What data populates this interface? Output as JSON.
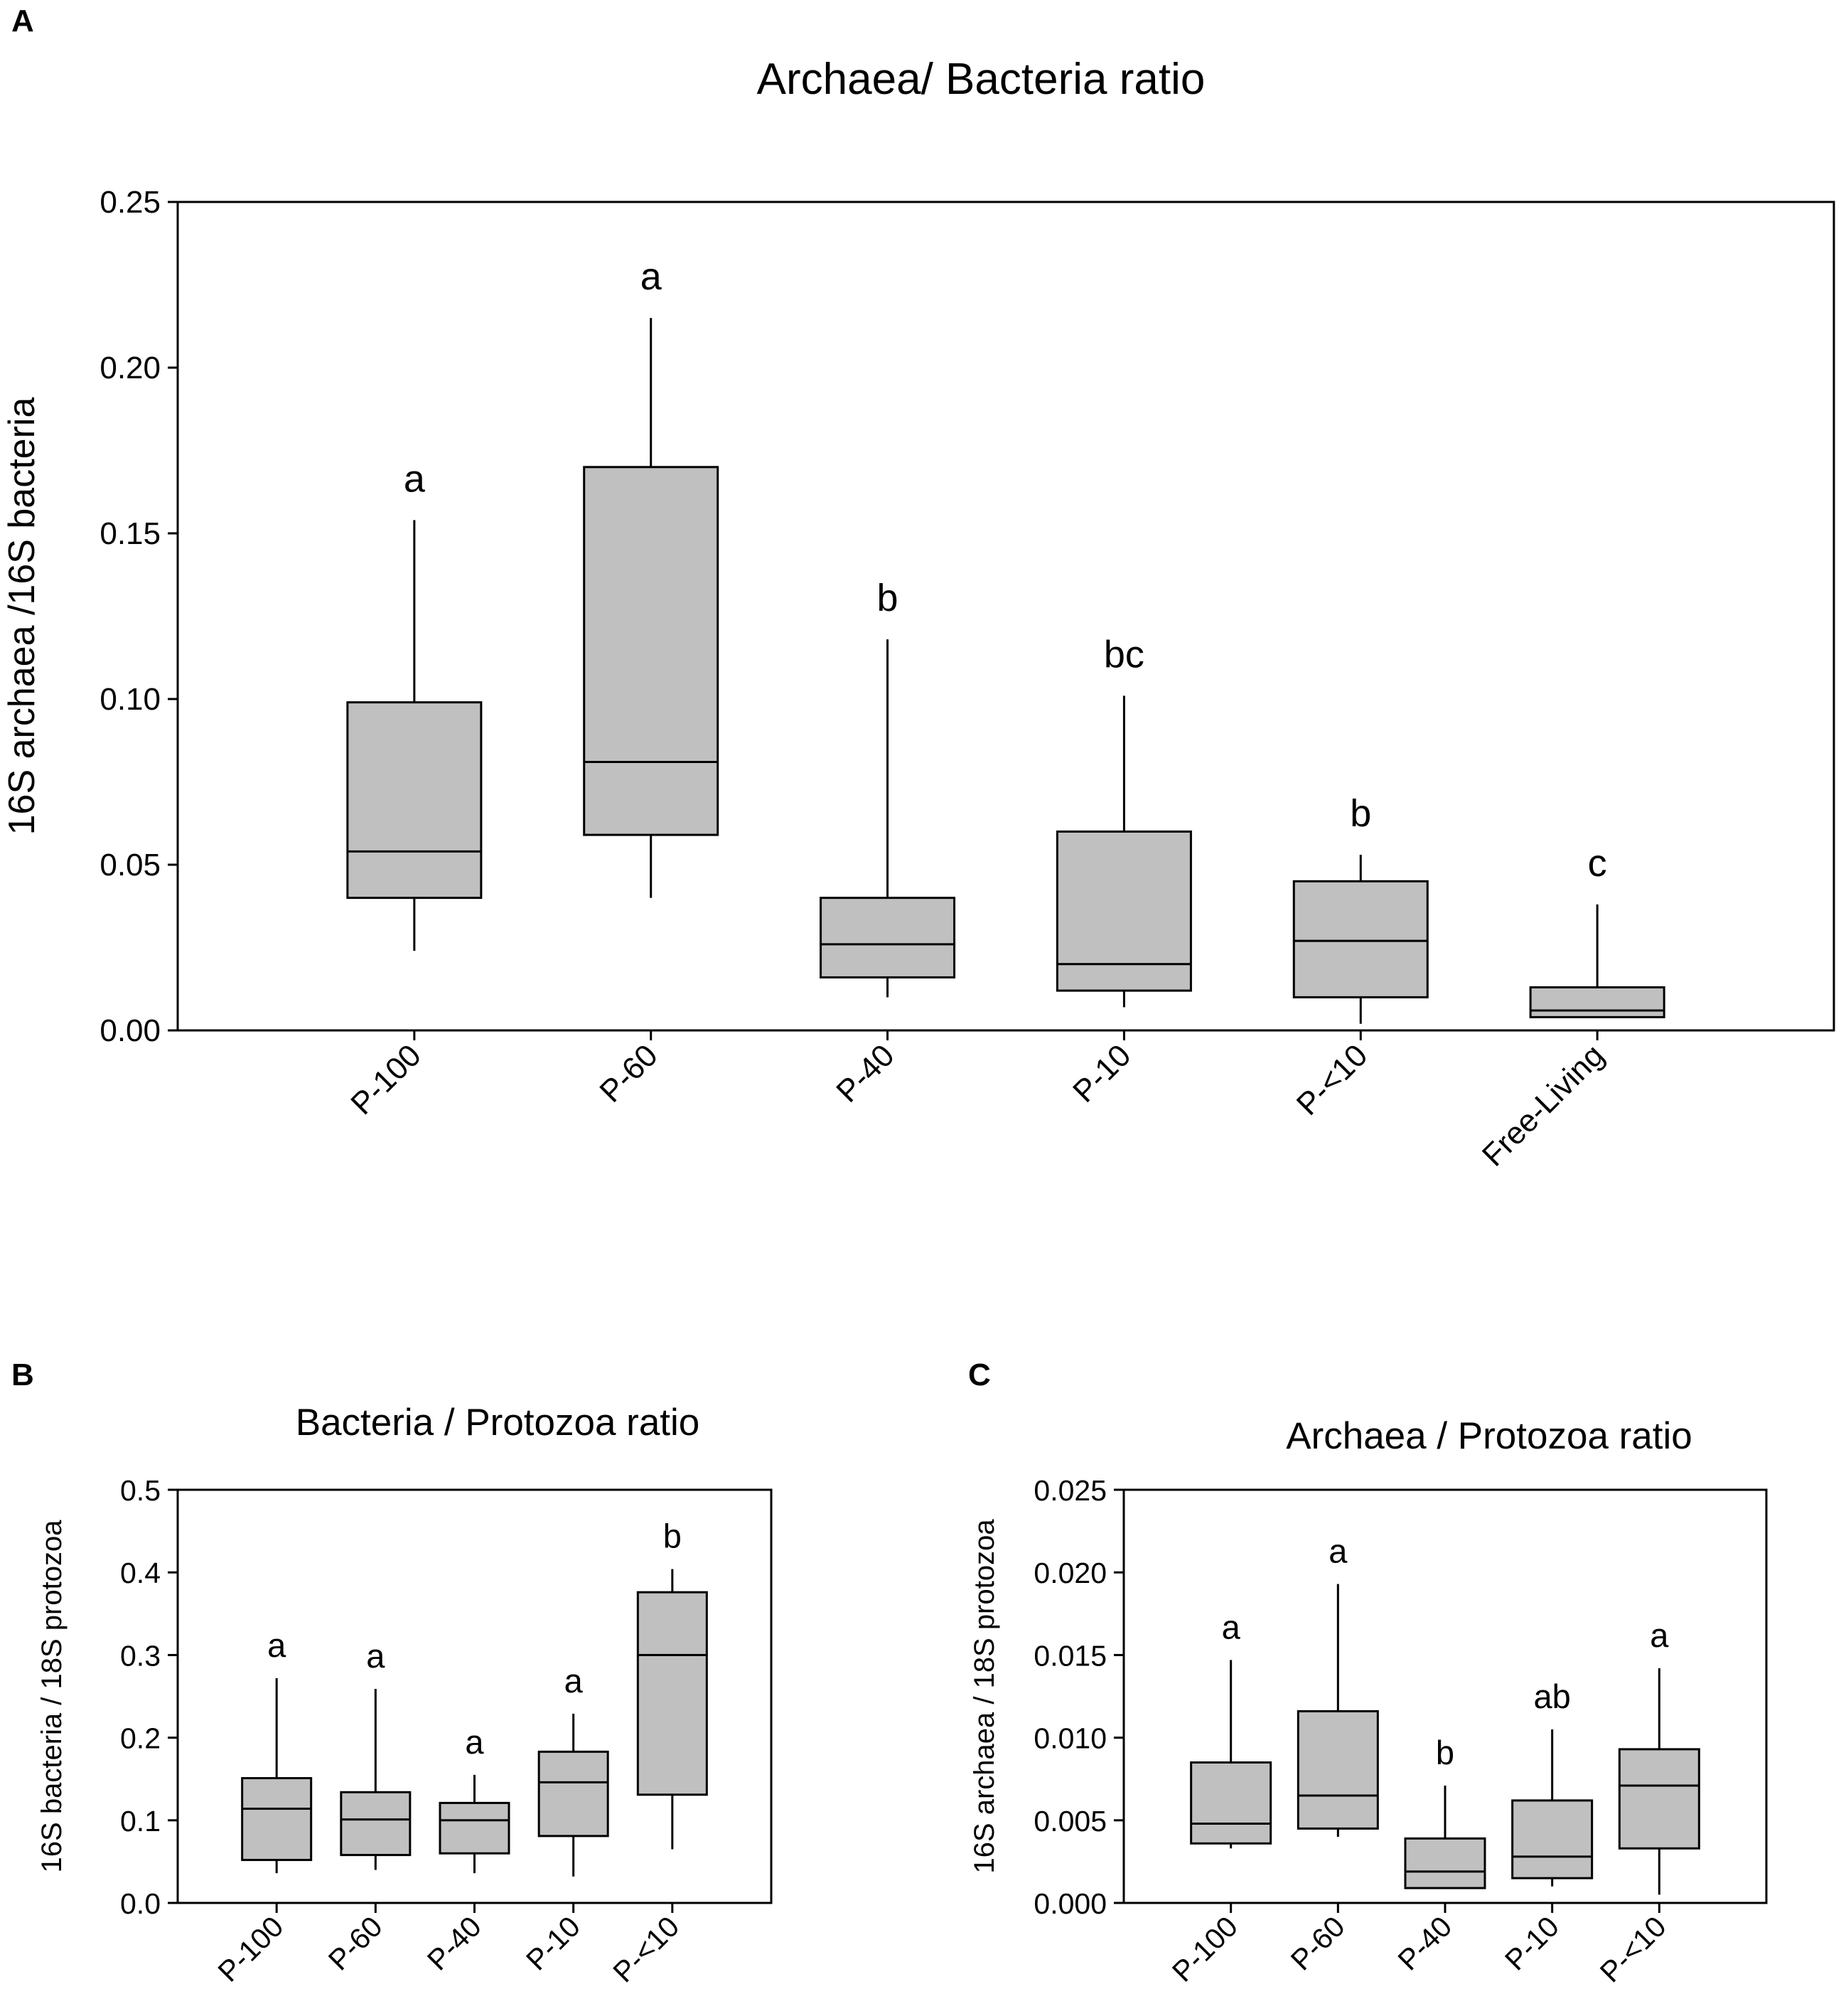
{
  "chart_data": [
    {
      "panel": "A",
      "type": "box",
      "title": "Archaea/ Bacteria ratio",
      "xlabel": "",
      "ylabel": "16S archaea /16S bacteria",
      "ylim": [
        0,
        0.25
      ],
      "yticks": [
        "0.00",
        "0.05",
        "0.10",
        "0.15",
        "0.20",
        "0.25"
      ],
      "categories": [
        "P-100",
        "P-60",
        "P-40",
        "P-10",
        "P-<10",
        "Free-Living"
      ],
      "boxes": [
        {
          "min": 0.024,
          "q1": 0.04,
          "median": 0.054,
          "q3": 0.099,
          "max": 0.154
        },
        {
          "min": 0.04,
          "q1": 0.059,
          "median": 0.081,
          "q3": 0.17,
          "max": 0.215
        },
        {
          "min": 0.01,
          "q1": 0.016,
          "median": 0.026,
          "q3": 0.04,
          "max": 0.118
        },
        {
          "min": 0.007,
          "q1": 0.012,
          "median": 0.02,
          "q3": 0.06,
          "max": 0.101
        },
        {
          "min": 0.002,
          "q1": 0.01,
          "median": 0.027,
          "q3": 0.045,
          "max": 0.053
        },
        {
          "min": 0.004,
          "q1": 0.004,
          "median": 0.006,
          "q3": 0.013,
          "max": 0.038
        }
      ],
      "significance": [
        "a",
        "a",
        "b",
        "bc",
        "b",
        "c"
      ]
    },
    {
      "panel": "B",
      "type": "box",
      "title": "Bacteria / Protozoa ratio",
      "xlabel": "",
      "ylabel": "16S bacteria / 18S protozoa",
      "ylim": [
        0,
        0.5
      ],
      "yticks": [
        "0.0",
        "0.1",
        "0.2",
        "0.3",
        "0.4",
        "0.5"
      ],
      "categories": [
        "P-100",
        "P-60",
        "P-40",
        "P-10",
        "P-<10"
      ],
      "boxes": [
        {
          "min": 0.036,
          "q1": 0.052,
          "median": 0.114,
          "q3": 0.151,
          "max": 0.272
        },
        {
          "min": 0.04,
          "q1": 0.058,
          "median": 0.101,
          "q3": 0.134,
          "max": 0.259
        },
        {
          "min": 0.036,
          "q1": 0.06,
          "median": 0.1,
          "q3": 0.121,
          "max": 0.155
        },
        {
          "min": 0.032,
          "q1": 0.081,
          "median": 0.146,
          "q3": 0.183,
          "max": 0.229
        },
        {
          "min": 0.065,
          "q1": 0.131,
          "median": 0.3,
          "q3": 0.376,
          "max": 0.404
        }
      ],
      "significance": [
        "a",
        "a",
        "a",
        "a",
        "b"
      ]
    },
    {
      "panel": "C",
      "type": "box",
      "title": "Archaea / Protozoa ratio",
      "xlabel": "",
      "ylabel": "16S archaea / 18S protozoa",
      "ylim": [
        0,
        0.025
      ],
      "yticks": [
        "0.000",
        "0.005",
        "0.010",
        "0.015",
        "0.020",
        "0.025"
      ],
      "categories": [
        "P-100",
        "P-60",
        "P-40",
        "P-10",
        "P-<10"
      ],
      "boxes": [
        {
          "min": 0.0033,
          "q1": 0.0036,
          "median": 0.0048,
          "q3": 0.0085,
          "max": 0.0147
        },
        {
          "min": 0.004,
          "q1": 0.0045,
          "median": 0.0065,
          "q3": 0.0116,
          "max": 0.0193
        },
        {
          "min": 0.0009,
          "q1": 0.0009,
          "median": 0.0019,
          "q3": 0.0039,
          "max": 0.0071
        },
        {
          "min": 0.001,
          "q1": 0.0015,
          "median": 0.0028,
          "q3": 0.0062,
          "max": 0.0105
        },
        {
          "min": 0.0005,
          "q1": 0.0033,
          "median": 0.0071,
          "q3": 0.0093,
          "max": 0.0142
        }
      ],
      "significance": [
        "a",
        "a",
        "b",
        "ab",
        "a"
      ]
    }
  ]
}
